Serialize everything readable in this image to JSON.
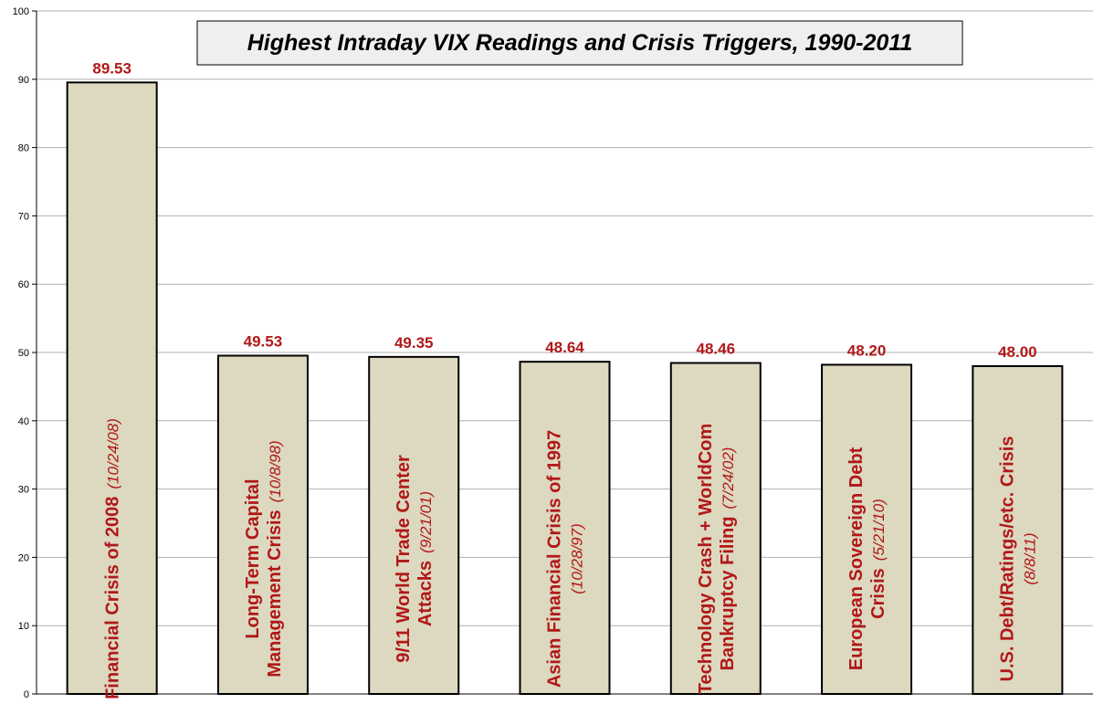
{
  "colors": {
    "bar_fill": "#ddd8c0",
    "bar_stroke": "#000000",
    "label": "#b01818",
    "grid": "#b0b0b0",
    "title_box": "#efefef"
  },
  "chart_data": {
    "type": "bar",
    "title": "Highest Intraday VIX Readings and Crisis Triggers, 1990-2011",
    "xlabel": "",
    "ylabel": "",
    "ylim": [
      0,
      100
    ],
    "yticks": [
      0,
      10,
      20,
      30,
      40,
      50,
      60,
      70,
      80,
      90,
      100
    ],
    "grid": true,
    "values": [
      89.53,
      49.53,
      49.35,
      48.64,
      48.46,
      48.2,
      48.0
    ],
    "value_labels": [
      "89.53",
      "49.53",
      "49.35",
      "48.64",
      "48.46",
      "48.20",
      "48.00"
    ],
    "bar_labels": [
      {
        "lines": [
          "Financial Crisis of 2008"
        ],
        "date": "(10/24/08)",
        "date_position": "inline"
      },
      {
        "lines": [
          "Long-Term Capital",
          "Management Crisis"
        ],
        "date": "(10/8/98)",
        "date_position": "inline"
      },
      {
        "lines": [
          "9/11 World Trade Center",
          "Attacks"
        ],
        "date": "(9/21/01)",
        "date_position": "inline"
      },
      {
        "lines": [
          "Asian Financial Crisis of 1997"
        ],
        "date": "(10/28/97)",
        "date_position": "newline"
      },
      {
        "lines": [
          "Technology Crash + WorldCom",
          "Bankruptcy Filing"
        ],
        "date": "(7/24/02)",
        "date_position": "inline"
      },
      {
        "lines": [
          "European Sovereign Debt",
          "Crisis"
        ],
        "date": "(5/21/10)",
        "date_position": "inline"
      },
      {
        "lines": [
          "U.S. Debt/Ratings/etc. Crisis"
        ],
        "date": "(8/8/11)",
        "date_position": "newline"
      }
    ]
  }
}
